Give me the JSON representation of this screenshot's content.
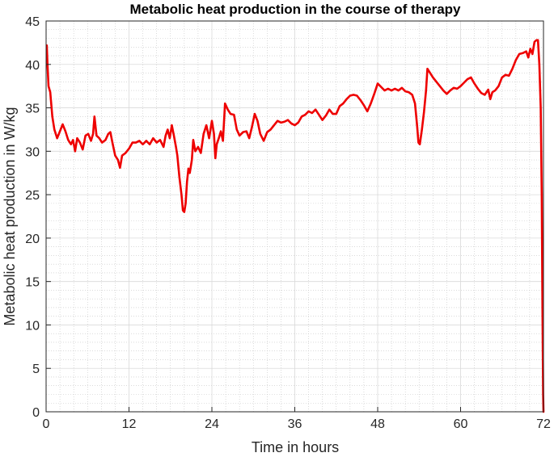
{
  "chart_data": {
    "type": "line",
    "title": "Metabolic heat production in the course of therapy",
    "xlabel": "Time in hours",
    "ylabel": "Metabolic heat production  in W/kg",
    "xlim": [
      0,
      72
    ],
    "ylim": [
      0,
      45
    ],
    "xticks": [
      0,
      12,
      24,
      36,
      48,
      60,
      72
    ],
    "yticks": [
      0,
      5,
      10,
      15,
      20,
      25,
      30,
      35,
      40,
      45
    ],
    "grid": "major and minor",
    "series": [
      {
        "color": "#ee0000",
        "points": [
          [
            0.1,
            42.2
          ],
          [
            0.2,
            40.0
          ],
          [
            0.35,
            37.5
          ],
          [
            0.6,
            36.8
          ],
          [
            0.9,
            34.0
          ],
          [
            1.2,
            32.5
          ],
          [
            1.6,
            31.5
          ],
          [
            2.0,
            32.3
          ],
          [
            2.4,
            33.1
          ],
          [
            2.8,
            32.3
          ],
          [
            3.2,
            31.3
          ],
          [
            3.6,
            30.8
          ],
          [
            3.9,
            31.3
          ],
          [
            4.2,
            30.0
          ],
          [
            4.5,
            31.5
          ],
          [
            4.9,
            31.0
          ],
          [
            5.3,
            30.2
          ],
          [
            5.7,
            31.8
          ],
          [
            6.1,
            32.0
          ],
          [
            6.5,
            31.2
          ],
          [
            6.8,
            32.0
          ],
          [
            7.0,
            34.0
          ],
          [
            7.3,
            31.8
          ],
          [
            7.7,
            31.5
          ],
          [
            8.1,
            31.0
          ],
          [
            8.6,
            31.3
          ],
          [
            9.0,
            32.0
          ],
          [
            9.3,
            32.2
          ],
          [
            9.6,
            31.0
          ],
          [
            10.0,
            29.5
          ],
          [
            10.4,
            29.0
          ],
          [
            10.7,
            28.1
          ],
          [
            11.0,
            29.5
          ],
          [
            11.5,
            29.8
          ],
          [
            12.0,
            30.3
          ],
          [
            12.5,
            31.0
          ],
          [
            13.0,
            31.0
          ],
          [
            13.5,
            31.2
          ],
          [
            14.0,
            30.8
          ],
          [
            14.5,
            31.2
          ],
          [
            15.0,
            30.8
          ],
          [
            15.5,
            31.5
          ],
          [
            16.0,
            31.0
          ],
          [
            16.5,
            31.3
          ],
          [
            17.0,
            30.5
          ],
          [
            17.3,
            31.8
          ],
          [
            17.6,
            32.5
          ],
          [
            17.9,
            31.5
          ],
          [
            18.2,
            33.0
          ],
          [
            18.5,
            31.8
          ],
          [
            18.8,
            30.5
          ],
          [
            19.0,
            29.5
          ],
          [
            19.3,
            27.0
          ],
          [
            19.6,
            25.0
          ],
          [
            19.8,
            23.2
          ],
          [
            20.0,
            23.0
          ],
          [
            20.2,
            24.0
          ],
          [
            20.4,
            26.5
          ],
          [
            20.6,
            28.0
          ],
          [
            20.8,
            27.5
          ],
          [
            21.1,
            29.0
          ],
          [
            21.3,
            31.3
          ],
          [
            21.6,
            30.0
          ],
          [
            22.0,
            30.5
          ],
          [
            22.4,
            29.8
          ],
          [
            22.8,
            32.0
          ],
          [
            23.2,
            33.0
          ],
          [
            23.6,
            31.5
          ],
          [
            24.0,
            33.5
          ],
          [
            24.3,
            32.0
          ],
          [
            24.5,
            29.2
          ],
          [
            24.7,
            30.8
          ],
          [
            25.0,
            31.5
          ],
          [
            25.3,
            32.3
          ],
          [
            25.6,
            31.2
          ],
          [
            25.9,
            35.5
          ],
          [
            26.3,
            34.8
          ],
          [
            26.7,
            34.3
          ],
          [
            27.2,
            34.2
          ],
          [
            27.6,
            32.5
          ],
          [
            28.0,
            31.8
          ],
          [
            28.5,
            32.2
          ],
          [
            29.0,
            32.3
          ],
          [
            29.4,
            31.5
          ],
          [
            29.8,
            32.8
          ],
          [
            30.2,
            34.3
          ],
          [
            30.6,
            33.5
          ],
          [
            31.0,
            32.0
          ],
          [
            31.5,
            31.2
          ],
          [
            32.0,
            32.2
          ],
          [
            32.5,
            32.5
          ],
          [
            33.0,
            33.0
          ],
          [
            33.5,
            33.5
          ],
          [
            34.0,
            33.3
          ],
          [
            34.5,
            33.4
          ],
          [
            35.0,
            33.6
          ],
          [
            35.5,
            33.2
          ],
          [
            36.0,
            33.0
          ],
          [
            36.5,
            33.3
          ],
          [
            37.0,
            34.0
          ],
          [
            37.5,
            34.2
          ],
          [
            38.0,
            34.6
          ],
          [
            38.5,
            34.4
          ],
          [
            39.0,
            34.8
          ],
          [
            39.5,
            34.2
          ],
          [
            40.0,
            33.6
          ],
          [
            40.5,
            34.1
          ],
          [
            41.0,
            34.8
          ],
          [
            41.5,
            34.3
          ],
          [
            42.0,
            34.3
          ],
          [
            42.5,
            35.2
          ],
          [
            43.0,
            35.5
          ],
          [
            43.5,
            36.0
          ],
          [
            44.0,
            36.4
          ],
          [
            44.5,
            36.5
          ],
          [
            45.0,
            36.4
          ],
          [
            45.5,
            35.9
          ],
          [
            46.0,
            35.3
          ],
          [
            46.5,
            34.6
          ],
          [
            47.0,
            35.5
          ],
          [
            47.5,
            36.6
          ],
          [
            48.0,
            37.8
          ],
          [
            48.5,
            37.4
          ],
          [
            49.0,
            37.0
          ],
          [
            49.5,
            37.2
          ],
          [
            50.0,
            37.0
          ],
          [
            50.5,
            37.2
          ],
          [
            51.0,
            37.0
          ],
          [
            51.5,
            37.3
          ],
          [
            52.0,
            36.9
          ],
          [
            52.5,
            36.8
          ],
          [
            53.0,
            36.5
          ],
          [
            53.4,
            35.5
          ],
          [
            53.7,
            33.0
          ],
          [
            53.9,
            31.0
          ],
          [
            54.1,
            30.8
          ],
          [
            54.4,
            32.5
          ],
          [
            54.7,
            34.5
          ],
          [
            55.0,
            37.0
          ],
          [
            55.2,
            39.5
          ],
          [
            55.6,
            39.0
          ],
          [
            56.0,
            38.5
          ],
          [
            56.5,
            38.0
          ],
          [
            57.0,
            37.5
          ],
          [
            57.5,
            37.0
          ],
          [
            58.0,
            36.6
          ],
          [
            58.5,
            37.0
          ],
          [
            59.0,
            37.3
          ],
          [
            59.5,
            37.2
          ],
          [
            60.0,
            37.5
          ],
          [
            60.5,
            37.9
          ],
          [
            61.0,
            38.3
          ],
          [
            61.5,
            38.5
          ],
          [
            62.0,
            37.8
          ],
          [
            62.5,
            37.2
          ],
          [
            63.0,
            36.7
          ],
          [
            63.5,
            36.5
          ],
          [
            64.0,
            37.1
          ],
          [
            64.3,
            36.0
          ],
          [
            64.6,
            36.8
          ],
          [
            65.0,
            37.0
          ],
          [
            65.5,
            37.5
          ],
          [
            66.0,
            38.5
          ],
          [
            66.5,
            38.8
          ],
          [
            67.0,
            38.7
          ],
          [
            67.5,
            39.5
          ],
          [
            68.0,
            40.5
          ],
          [
            68.5,
            41.2
          ],
          [
            69.0,
            41.3
          ],
          [
            69.5,
            41.5
          ],
          [
            69.8,
            40.8
          ],
          [
            70.1,
            41.8
          ],
          [
            70.4,
            41.2
          ],
          [
            70.7,
            42.6
          ],
          [
            71.0,
            42.8
          ],
          [
            71.2,
            42.8
          ],
          [
            71.4,
            40.0
          ],
          [
            71.6,
            35.0
          ],
          [
            71.75,
            25.0
          ],
          [
            71.85,
            12.0
          ],
          [
            71.95,
            2.0
          ],
          [
            72.0,
            0.0
          ]
        ]
      }
    ]
  }
}
